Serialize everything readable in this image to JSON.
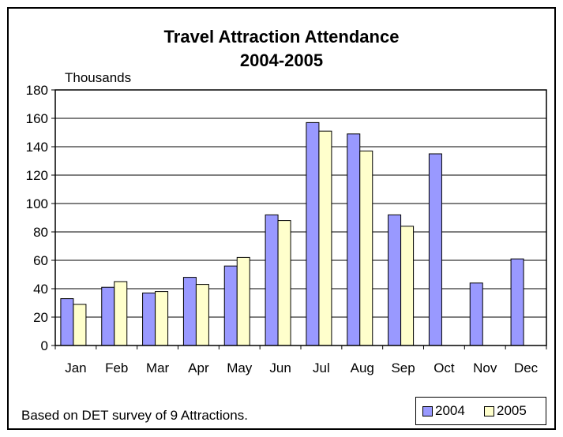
{
  "chart_data": {
    "type": "bar",
    "title": "Travel Attraction Attendance",
    "subtitle": "2004-2005",
    "ylabel": "Thousands",
    "xlabel": "",
    "categories": [
      "Jan",
      "Feb",
      "Mar",
      "Apr",
      "May",
      "Jun",
      "Jul",
      "Aug",
      "Sep",
      "Oct",
      "Nov",
      "Dec"
    ],
    "series": [
      {
        "name": "2004",
        "color": "#9999FF",
        "values": [
          33,
          41,
          37,
          48,
          56,
          92,
          157,
          149,
          92,
          135,
          44,
          61
        ]
      },
      {
        "name": "2005",
        "color": "#FFFFCC",
        "values": [
          29,
          45,
          38,
          43,
          62,
          88,
          151,
          137,
          84,
          null,
          null,
          null
        ]
      }
    ],
    "ylim": [
      0,
      180
    ],
    "yticks": [
      0,
      20,
      40,
      60,
      80,
      100,
      120,
      140,
      160,
      180
    ],
    "grid": true,
    "legend_position": "bottom-right",
    "footnote": "Based on DET survey of 9 Attractions."
  }
}
